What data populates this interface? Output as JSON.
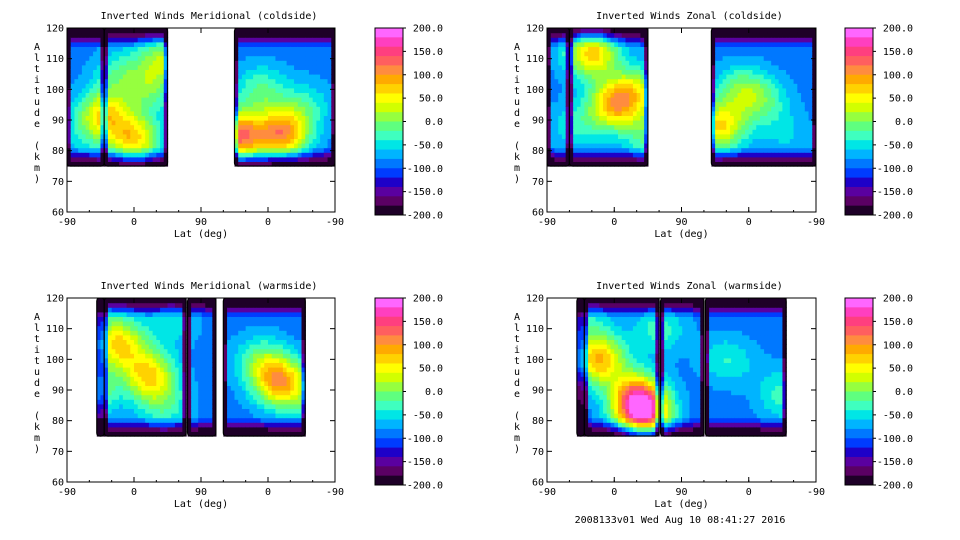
{
  "footer_text": "2008133v01 Wed Aug 10 08:41:27 2016",
  "colorbar": {
    "labels": [
      "200.0",
      "150.0",
      "100.0",
      "50.0",
      "0.0",
      "-50.0",
      "-100.0",
      "-150.0",
      "-200.0"
    ],
    "colors": [
      "#ff66ff",
      "#ff3fbf",
      "#ff3f7f",
      "#ff5f5f",
      "#ff8c3f",
      "#ffaa00",
      "#ffd200",
      "#ffff00",
      "#d2ff00",
      "#96ff3f",
      "#5fff7f",
      "#3fffbf",
      "#00e6e6",
      "#00b4ff",
      "#0078ff",
      "#003cff",
      "#1e00c8",
      "#5a00a0",
      "#5a0064",
      "#1e0028"
    ]
  },
  "chart_data": [
    {
      "type": "heatmap",
      "title": "Inverted Winds Meridional (coldside)",
      "xlabel": "Lat (deg)",
      "ylabel": "Altitude (km)",
      "x_ticks": [
        "-90",
        "0",
        "90",
        "0",
        "-90"
      ],
      "y_ticks": [
        "120",
        "110",
        "100",
        "90",
        "80",
        "70",
        "60"
      ],
      "ylim": [
        60,
        120
      ],
      "zlim": [
        -200,
        200
      ],
      "data_altitude_range": [
        75,
        120
      ],
      "blobs": [
        {
          "x": -40,
          "y": 92,
          "v": 50
        },
        {
          "x": -70,
          "y": 85,
          "v": -60
        },
        {
          "x": -20,
          "y": 105,
          "v": -30
        },
        {
          "x": 0,
          "y": 84,
          "v": 60
        },
        {
          "x": 20,
          "y": 100,
          "v": -20
        },
        {
          "x": 40,
          "y": 110,
          "v": 10
        },
        {
          "x": 140,
          "y": 85,
          "v": 120
        },
        {
          "x": 200,
          "y": 86,
          "v": 100
        },
        {
          "x": 170,
          "y": 100,
          "v": -20
        },
        {
          "x": 230,
          "y": 95,
          "v": -40
        }
      ]
    },
    {
      "type": "heatmap",
      "title": "Inverted Winds Zonal (coldside)",
      "xlabel": "Lat (deg)",
      "ylabel": "Altitude (km)",
      "x_ticks": [
        "-90",
        "0",
        "90",
        "0",
        "-90"
      ],
      "y_ticks": [
        "120",
        "110",
        "100",
        "90",
        "80",
        "70",
        "60"
      ],
      "ylim": [
        60,
        120
      ],
      "zlim": [
        -200,
        200
      ],
      "data_altitude_range": [
        75,
        120
      ],
      "blobs": [
        {
          "x": -30,
          "y": 112,
          "v": 70
        },
        {
          "x": 0,
          "y": 95,
          "v": 70
        },
        {
          "x": -50,
          "y": 88,
          "v": -40
        },
        {
          "x": 30,
          "y": 100,
          "v": 10
        },
        {
          "x": 50,
          "y": 85,
          "v": -10
        },
        {
          "x": 140,
          "y": 88,
          "v": 60
        },
        {
          "x": 200,
          "y": 96,
          "v": -30
        },
        {
          "x": 170,
          "y": 100,
          "v": -10
        },
        {
          "x": 230,
          "y": 85,
          "v": -60
        }
      ]
    },
    {
      "type": "heatmap",
      "title": "Inverted Winds Meridional (warmside)",
      "xlabel": "Lat (deg)",
      "ylabel": "Altitude (km)",
      "x_ticks": [
        "-90",
        "0",
        "90",
        "0",
        "-90"
      ],
      "y_ticks": [
        "120",
        "110",
        "100",
        "90",
        "80",
        "70",
        "60"
      ],
      "ylim": [
        60,
        120
      ],
      "zlim": [
        -200,
        200
      ],
      "data_altitude_range": [
        75,
        120
      ],
      "blobs": [
        {
          "x": -20,
          "y": 105,
          "v": 60
        },
        {
          "x": 20,
          "y": 95,
          "v": 60
        },
        {
          "x": -40,
          "y": 115,
          "v": -60
        },
        {
          "x": 50,
          "y": 112,
          "v": -50
        },
        {
          "x": -60,
          "y": 90,
          "v": 20
        },
        {
          "x": 40,
          "y": 85,
          "v": -30
        },
        {
          "x": 195,
          "y": 93,
          "v": 80
        },
        {
          "x": 170,
          "y": 100,
          "v": -20
        },
        {
          "x": 230,
          "y": 88,
          "v": -40
        }
      ]
    },
    {
      "type": "heatmap",
      "title": "Inverted Winds Zonal (warmside)",
      "xlabel": "Lat (deg)",
      "ylabel": "Altitude (km)",
      "x_ticks": [
        "-90",
        "0",
        "90",
        "0",
        "-90"
      ],
      "y_ticks": [
        "120",
        "110",
        "100",
        "90",
        "80",
        "70",
        "60"
      ],
      "ylim": [
        60,
        120
      ],
      "zlim": [
        -200,
        200
      ],
      "data_altitude_range": [
        75,
        120
      ],
      "blobs": [
        {
          "x": -20,
          "y": 100,
          "v": 80
        },
        {
          "x": 30,
          "y": 88,
          "v": 90
        },
        {
          "x": 40,
          "y": 82,
          "v": 120
        },
        {
          "x": -40,
          "y": 112,
          "v": -40
        },
        {
          "x": 60,
          "y": 110,
          "v": -30
        },
        {
          "x": 150,
          "y": 100,
          "v": -40
        },
        {
          "x": 200,
          "y": 95,
          "v": -80
        },
        {
          "x": 230,
          "y": 88,
          "v": -30
        }
      ]
    }
  ]
}
